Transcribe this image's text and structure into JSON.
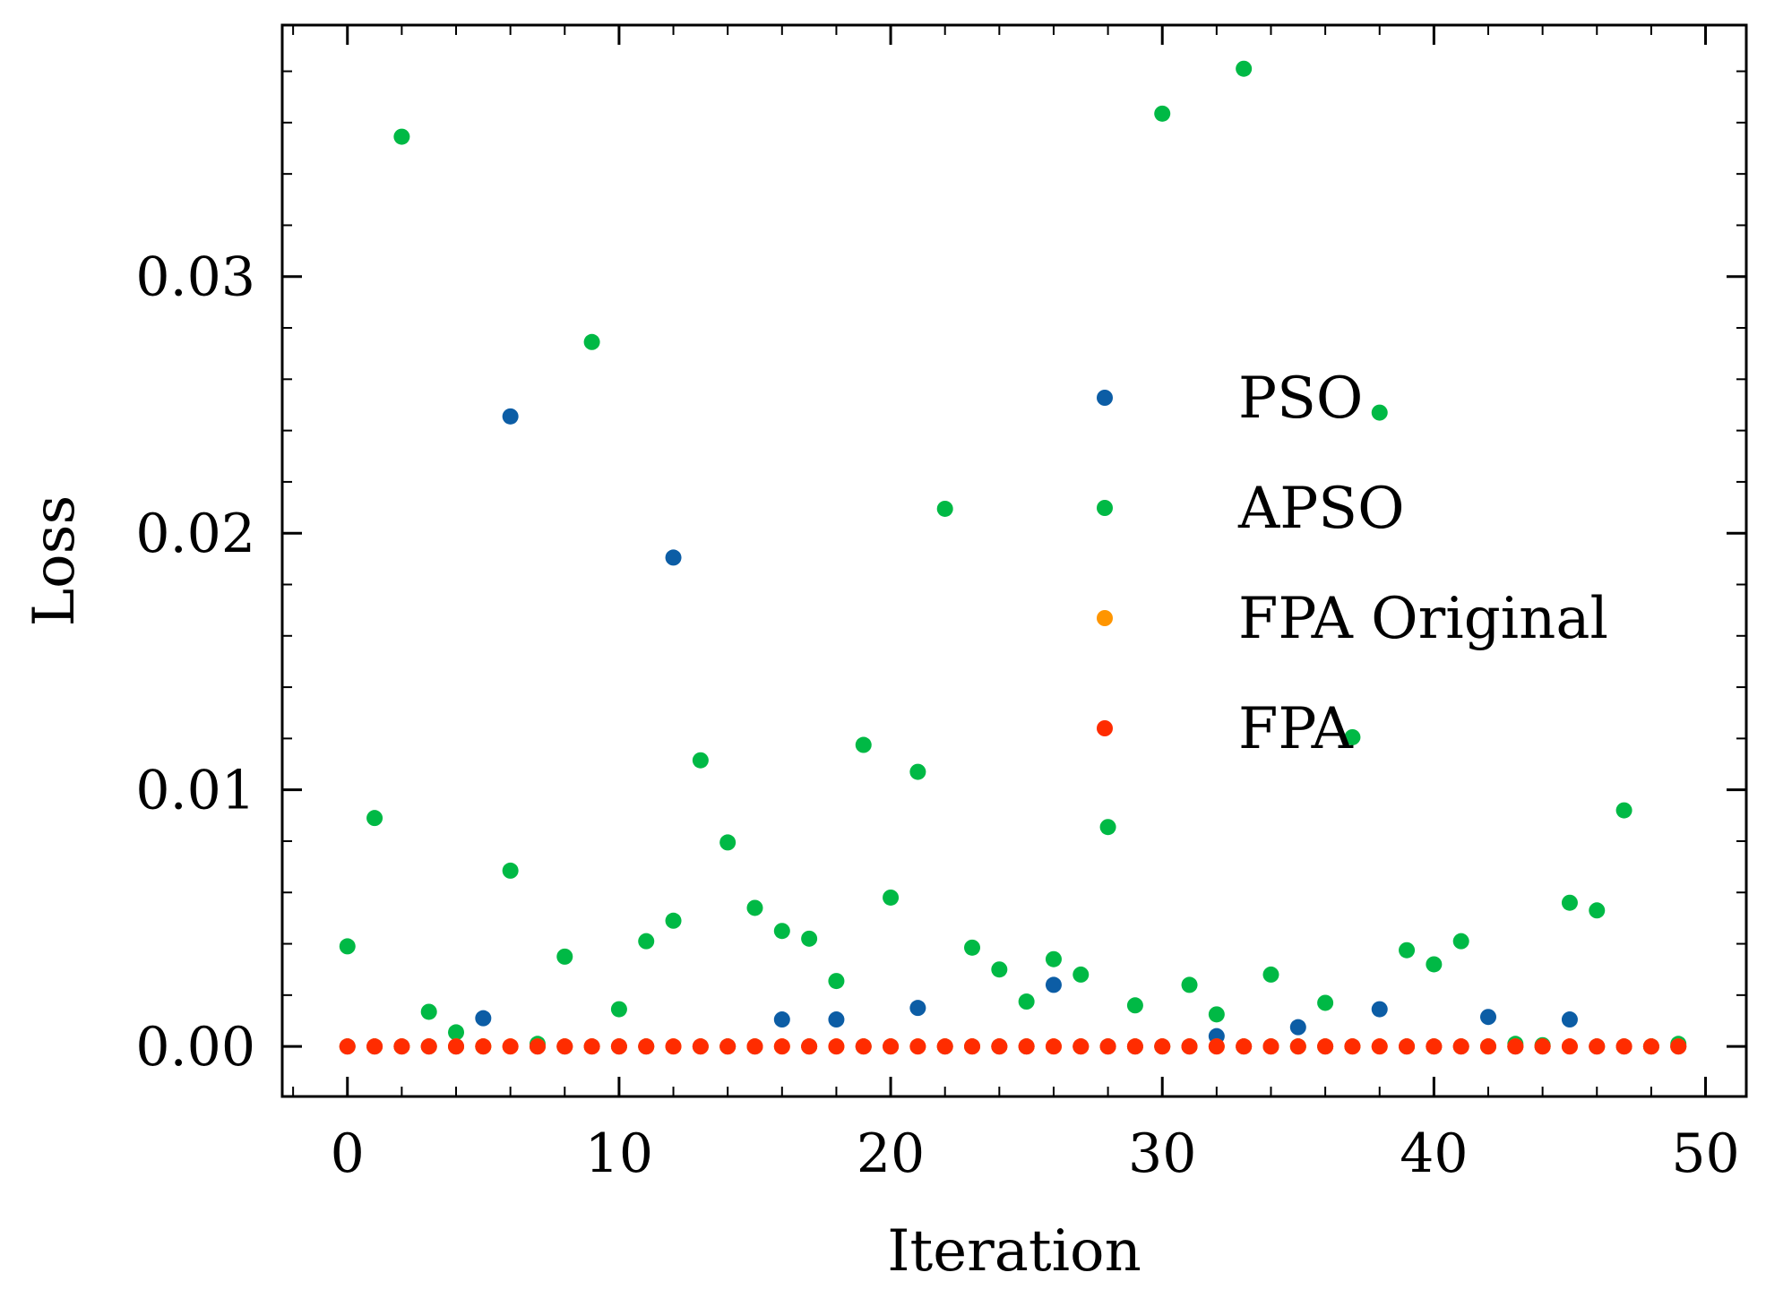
{
  "chart_data": {
    "type": "scatter",
    "title": "",
    "xlabel": "Iteration",
    "ylabel": "Loss",
    "xlim": [
      -2.4,
      51.5
    ],
    "ylim": [
      -0.00195,
      0.0398
    ],
    "xticks": [
      0,
      10,
      20,
      30,
      40,
      50
    ],
    "xtick_labels": [
      "0",
      "10",
      "20",
      "30",
      "40",
      "50"
    ],
    "xminor_step": 2,
    "yticks": [
      0.0,
      0.01,
      0.02,
      0.03
    ],
    "ytick_labels": [
      "0.00",
      "0.01",
      "0.02",
      "0.03"
    ],
    "yminor_step": 0.002,
    "grid": false,
    "legend_position": "center-right",
    "series": [
      {
        "name": "PSO",
        "color": "#0C5DA5",
        "points": [
          [
            0,
            0.0
          ],
          [
            1,
            0.0
          ],
          [
            2,
            0.0
          ],
          [
            3,
            0.0
          ],
          [
            4,
            0.0
          ],
          [
            5,
            0.0011
          ],
          [
            6,
            0.02455
          ],
          [
            7,
            0.0
          ],
          [
            8,
            0.0
          ],
          [
            9,
            0.0
          ],
          [
            10,
            0.0
          ],
          [
            11,
            0.0
          ],
          [
            12,
            0.01905
          ],
          [
            13,
            0.0
          ],
          [
            14,
            0.0
          ],
          [
            15,
            0.0
          ],
          [
            16,
            0.00105
          ],
          [
            17,
            0.0
          ],
          [
            18,
            0.00105
          ],
          [
            19,
            0.0
          ],
          [
            20,
            0.0
          ],
          [
            21,
            0.0015
          ],
          [
            22,
            0.0
          ],
          [
            23,
            0.0
          ],
          [
            24,
            0.0
          ],
          [
            25,
            0.0
          ],
          [
            26,
            0.0024
          ],
          [
            27,
            0.0
          ],
          [
            28,
            0.0
          ],
          [
            29,
            0.0
          ],
          [
            30,
            0.0
          ],
          [
            31,
            0.0
          ],
          [
            32,
            0.0004
          ],
          [
            33,
            0.0
          ],
          [
            34,
            0.0
          ],
          [
            35,
            0.00075
          ],
          [
            36,
            0.0
          ],
          [
            37,
            0.0
          ],
          [
            38,
            0.00145
          ],
          [
            39,
            0.0
          ],
          [
            40,
            0.0
          ],
          [
            41,
            0.0
          ],
          [
            42,
            0.00115
          ],
          [
            43,
            0.0
          ],
          [
            44,
            0.0
          ],
          [
            45,
            0.00105
          ],
          [
            46,
            0.0
          ],
          [
            47,
            0.0
          ],
          [
            48,
            0.0
          ],
          [
            49,
            0.0
          ]
        ]
      },
      {
        "name": "APSO",
        "color": "#00B945",
        "points": [
          [
            0,
            0.0039
          ],
          [
            1,
            0.0089
          ],
          [
            2,
            0.03545
          ],
          [
            3,
            0.00135
          ],
          [
            4,
            0.00055
          ],
          [
            5,
            0.0
          ],
          [
            6,
            0.00685
          ],
          [
            7,
            0.0001
          ],
          [
            8,
            0.0035
          ],
          [
            9,
            0.02745
          ],
          [
            10,
            0.00145
          ],
          [
            11,
            0.0041
          ],
          [
            12,
            0.0049
          ],
          [
            13,
            0.01115
          ],
          [
            14,
            0.00795
          ],
          [
            15,
            0.0054
          ],
          [
            16,
            0.0045
          ],
          [
            17,
            0.0042
          ],
          [
            18,
            0.00255
          ],
          [
            19,
            0.01175
          ],
          [
            20,
            0.0058
          ],
          [
            21,
            0.0107
          ],
          [
            22,
            0.02095
          ],
          [
            23,
            0.00385
          ],
          [
            24,
            0.003
          ],
          [
            25,
            0.00175
          ],
          [
            26,
            0.0034
          ],
          [
            27,
            0.0028
          ],
          [
            28,
            0.00855
          ],
          [
            29,
            0.0016
          ],
          [
            30,
            0.03635
          ],
          [
            31,
            0.0024
          ],
          [
            32,
            0.00125
          ],
          [
            33,
            0.0381
          ],
          [
            34,
            0.0028
          ],
          [
            35,
            0.0
          ],
          [
            36,
            0.0017
          ],
          [
            37,
            0.01205
          ],
          [
            38,
            0.0247
          ],
          [
            39,
            0.00375
          ],
          [
            40,
            0.0032
          ],
          [
            41,
            0.0041
          ],
          [
            42,
            0.0
          ],
          [
            43,
            0.0001
          ],
          [
            44,
            5e-05
          ],
          [
            45,
            0.0056
          ],
          [
            46,
            0.0053
          ],
          [
            47,
            0.0092
          ],
          [
            48,
            0.0
          ],
          [
            49,
            0.0001
          ]
        ]
      },
      {
        "name": "FPA Original",
        "color": "#FF9500",
        "points": [
          [
            0,
            0.0
          ],
          [
            1,
            0.0
          ],
          [
            2,
            0.0
          ],
          [
            3,
            0.0
          ],
          [
            4,
            0.0
          ],
          [
            5,
            0.0
          ],
          [
            6,
            0.0
          ],
          [
            7,
            0.0
          ],
          [
            8,
            0.0
          ],
          [
            9,
            0.0
          ],
          [
            10,
            0.0
          ],
          [
            11,
            0.0
          ],
          [
            12,
            0.0
          ],
          [
            13,
            0.0
          ],
          [
            14,
            0.0
          ],
          [
            15,
            0.0
          ],
          [
            16,
            0.0
          ],
          [
            17,
            0.0
          ],
          [
            18,
            0.0
          ],
          [
            19,
            0.0
          ],
          [
            20,
            0.0
          ],
          [
            21,
            0.0
          ],
          [
            22,
            0.0
          ],
          [
            23,
            0.0
          ],
          [
            24,
            0.0
          ],
          [
            25,
            0.0
          ],
          [
            26,
            0.0
          ],
          [
            27,
            0.0
          ],
          [
            28,
            0.0
          ],
          [
            29,
            0.0
          ],
          [
            30,
            0.0
          ],
          [
            31,
            0.0
          ],
          [
            32,
            0.0
          ],
          [
            33,
            0.0
          ],
          [
            34,
            0.0
          ],
          [
            35,
            0.0
          ],
          [
            36,
            0.0
          ],
          [
            37,
            0.0
          ],
          [
            38,
            0.0
          ],
          [
            39,
            0.0
          ],
          [
            40,
            0.0
          ],
          [
            41,
            0.0
          ],
          [
            42,
            0.0
          ],
          [
            43,
            0.0
          ],
          [
            44,
            0.0
          ],
          [
            45,
            0.0
          ],
          [
            46,
            0.0
          ],
          [
            47,
            0.0
          ],
          [
            48,
            0.0
          ],
          [
            49,
            0.0
          ]
        ]
      },
      {
        "name": "FPA",
        "color": "#FF2C00",
        "points": [
          [
            0,
            0.0
          ],
          [
            1,
            0.0
          ],
          [
            2,
            0.0
          ],
          [
            3,
            0.0
          ],
          [
            4,
            0.0
          ],
          [
            5,
            0.0
          ],
          [
            6,
            0.0
          ],
          [
            7,
            0.0
          ],
          [
            8,
            0.0
          ],
          [
            9,
            0.0
          ],
          [
            10,
            0.0
          ],
          [
            11,
            0.0
          ],
          [
            12,
            0.0
          ],
          [
            13,
            0.0
          ],
          [
            14,
            0.0
          ],
          [
            15,
            0.0
          ],
          [
            16,
            0.0
          ],
          [
            17,
            0.0
          ],
          [
            18,
            0.0
          ],
          [
            19,
            0.0
          ],
          [
            20,
            0.0
          ],
          [
            21,
            0.0
          ],
          [
            22,
            0.0
          ],
          [
            23,
            0.0
          ],
          [
            24,
            0.0
          ],
          [
            25,
            0.0
          ],
          [
            26,
            0.0
          ],
          [
            27,
            0.0
          ],
          [
            28,
            0.0
          ],
          [
            29,
            0.0
          ],
          [
            30,
            0.0
          ],
          [
            31,
            0.0
          ],
          [
            32,
            0.0
          ],
          [
            33,
            0.0
          ],
          [
            34,
            0.0
          ],
          [
            35,
            0.0
          ],
          [
            36,
            0.0
          ],
          [
            37,
            0.0
          ],
          [
            38,
            0.0
          ],
          [
            39,
            0.0
          ],
          [
            40,
            0.0
          ],
          [
            41,
            0.0
          ],
          [
            42,
            0.0
          ],
          [
            43,
            0.0
          ],
          [
            44,
            0.0
          ],
          [
            45,
            0.0
          ],
          [
            46,
            0.0
          ],
          [
            47,
            0.0
          ],
          [
            48,
            0.0
          ],
          [
            49,
            0.0
          ]
        ]
      }
    ]
  }
}
